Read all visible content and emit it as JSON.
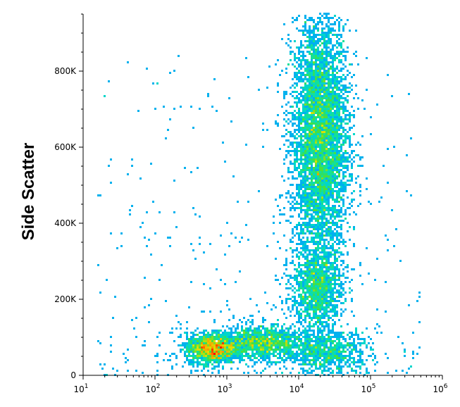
{
  "chart_data": {
    "type": "scatter",
    "title": "",
    "xlabel": "",
    "ylabel": "Side Scatter",
    "x_scale": "log",
    "xlim": [
      10,
      1000000
    ],
    "ylim": [
      0,
      950000
    ],
    "x_ticks": [
      {
        "value": 10,
        "base": "10",
        "exp": "1"
      },
      {
        "value": 100,
        "base": "10",
        "exp": "2"
      },
      {
        "value": 1000,
        "base": "10",
        "exp": "3"
      },
      {
        "value": 10000,
        "base": "10",
        "exp": "4"
      },
      {
        "value": 100000,
        "base": "10",
        "exp": "5"
      },
      {
        "value": 1000000,
        "base": "10",
        "exp": "6"
      }
    ],
    "y_ticks": [
      {
        "value": 0,
        "label": "0"
      },
      {
        "value": 200000,
        "label": "200K"
      },
      {
        "value": 400000,
        "label": "400K"
      },
      {
        "value": 600000,
        "label": "600K"
      },
      {
        "value": 800000,
        "label": "800K"
      }
    ],
    "grid": false,
    "colormap": [
      "#0000ff",
      "#00a0ff",
      "#00e0c0",
      "#40e040",
      "#e0e000",
      "#ff8000",
      "#ff0000"
    ],
    "populations": [
      {
        "x_center": 20000,
        "y_center": 620000,
        "x_spread": 0.2,
        "y_spread": 165000,
        "count": 5200
      },
      {
        "x_center": 18000,
        "y_center": 230000,
        "x_spread": 0.18,
        "y_spread": 55000,
        "count": 1300
      },
      {
        "x_center": 600,
        "y_center": 70000,
        "x_spread": 0.17,
        "y_spread": 20000,
        "count": 1500
      },
      {
        "x_center": 3000,
        "y_center": 85000,
        "x_spread": 0.3,
        "y_spread": 22000,
        "count": 1400
      },
      {
        "x_center": 25000,
        "y_center": 60000,
        "x_spread": 0.3,
        "y_spread": 30000,
        "count": 900
      }
    ]
  }
}
